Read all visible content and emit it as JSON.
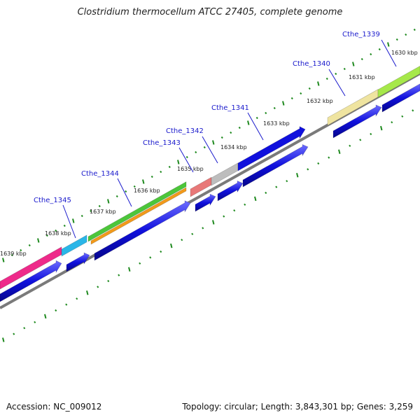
{
  "title": "Clostridium thermocellum ATCC 27405, complete genome",
  "footer": {
    "accession": "Accession: NC_009012",
    "topology": "Topology: circular; Length: 3,843,301 bp; Genes: 3,259"
  },
  "kbp_ticks": [
    "1630 kbp",
    "1631 kbp",
    "1632 kbp",
    "1633 kbp",
    "1634 kbp",
    "1635 kbp",
    "1636 kbp",
    "1637 kbp",
    "1638 kbp",
    "1639 kbp"
  ],
  "genes": [
    {
      "name": "Cthe_1339",
      "color": "#a6e84a"
    },
    {
      "name": "Cthe_1340",
      "color": "#efe4a0"
    },
    {
      "name": "Cthe_1341",
      "color": "#1010dd"
    },
    {
      "name": "Cthe_1342",
      "color": "#bdbdbd"
    },
    {
      "name": "Cthe_1343",
      "color": "#e87878"
    },
    {
      "name": "Cthe_1344",
      "color": "#4cc63a"
    },
    {
      "name": "Cthe_1345",
      "color": "#2ab6e8"
    }
  ],
  "colors": {
    "backbone": "#7a7a7a",
    "cds": "#1010dd",
    "tick": "#1f8a1f",
    "orange": "#f29a1a",
    "pink": "#ee2a8a",
    "label": "#1a1acc"
  }
}
